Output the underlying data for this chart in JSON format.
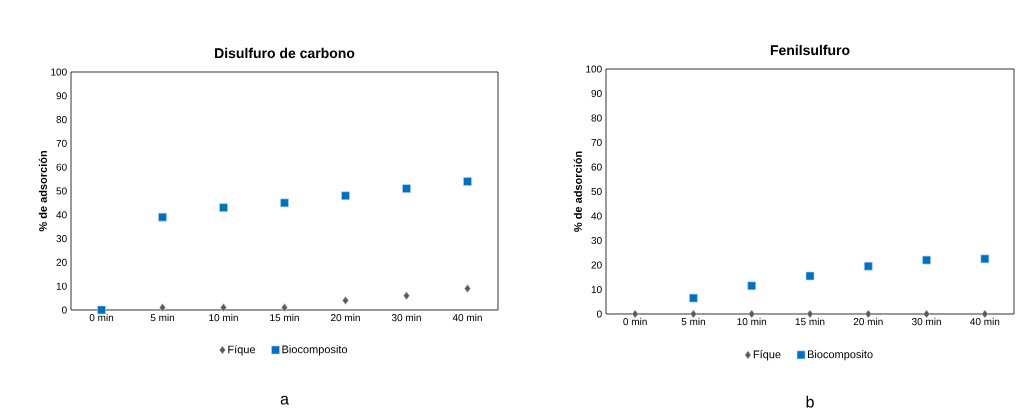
{
  "chart_data": [
    {
      "type": "scatter",
      "title": "Disulfuro de carbono",
      "ylabel": "% de  adsorción",
      "categories": [
        "0 min",
        "5 min",
        "10 min",
        "15 min",
        "20 min",
        "30 min",
        "40 min"
      ],
      "series": [
        {
          "name": "Fíque",
          "color": "#595959",
          "marker": "diamond",
          "values": [
            null,
            1,
            1,
            1,
            4,
            6,
            9
          ]
        },
        {
          "name": "Biocomposito",
          "color": "#0070c0",
          "marker": "square",
          "values": [
            0,
            39,
            43,
            45,
            48,
            51,
            54
          ]
        }
      ],
      "ylim": [
        0,
        100
      ],
      "yticks": [
        0,
        10,
        20,
        30,
        40,
        50,
        60,
        70,
        80,
        90,
        100
      ],
      "grid": false,
      "legend": "bottom",
      "annotations": [
        "a"
      ]
    },
    {
      "type": "scatter",
      "title": "Fenilsulfuro",
      "ylabel": "% de adsorción",
      "categories": [
        "0 min",
        "5 min",
        "10 min",
        "15 min",
        "20 min",
        "30 min",
        "40 min"
      ],
      "series": [
        {
          "name": "Fíque",
          "color": "#595959",
          "marker": "diamond",
          "values": [
            0,
            0,
            0,
            0,
            0,
            0,
            0
          ]
        },
        {
          "name": "Biocomposito",
          "color": "#0070c0",
          "marker": "square",
          "values": [
            null,
            6.5,
            11.5,
            15.5,
            19.5,
            22,
            22.5
          ]
        }
      ],
      "ylim": [
        0,
        100
      ],
      "yticks": [
        0,
        10,
        20,
        30,
        40,
        50,
        60,
        70,
        80,
        90,
        100
      ],
      "grid": false,
      "legend": "bottom",
      "annotations": [
        "b"
      ]
    }
  ]
}
